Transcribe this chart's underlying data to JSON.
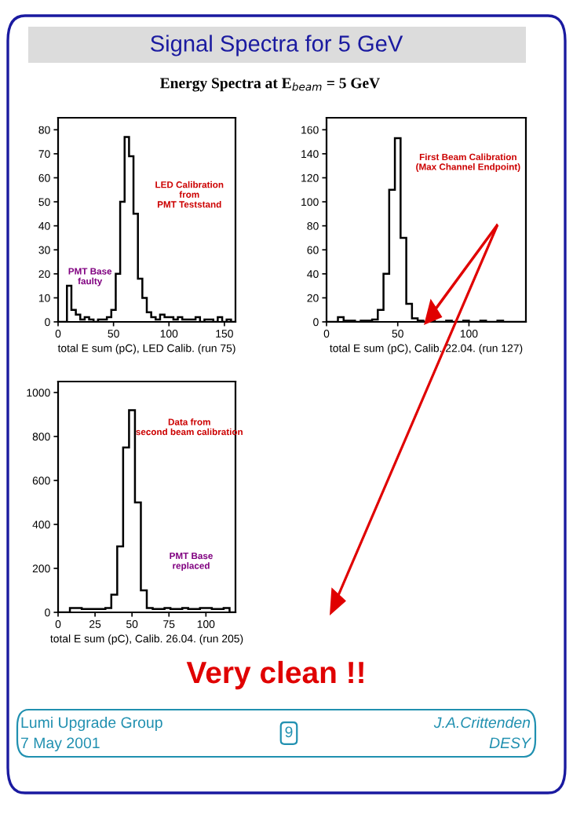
{
  "chart_data": [
    {
      "type": "histogram",
      "xlabel": "total E sum (pC), LED Calib. (run 75)",
      "bins": [
        0,
        4,
        8,
        12,
        16,
        20,
        24,
        28,
        32,
        36,
        40,
        44,
        48,
        52,
        56,
        60,
        64,
        68,
        72,
        76,
        80,
        84,
        88,
        92,
        96,
        100,
        104,
        108,
        112,
        116,
        120,
        124,
        128,
        132,
        136,
        140,
        144,
        148,
        152,
        156,
        160
      ],
      "values": [
        0,
        0,
        15,
        5,
        3,
        1,
        2,
        1,
        0,
        1,
        1,
        2,
        5,
        20,
        50,
        77,
        69,
        45,
        18,
        10,
        4,
        2,
        1,
        3,
        2,
        2,
        1,
        2,
        1,
        1,
        1,
        2,
        0,
        1,
        1,
        0,
        2,
        0,
        1,
        0
      ],
      "color": "#000000",
      "xlim": [
        0,
        160
      ],
      "ylim": [
        0,
        85
      ],
      "xticks": [
        0,
        50,
        100,
        150
      ],
      "yticks": [
        0,
        10,
        20,
        30,
        40,
        50,
        60,
        70,
        80
      ],
      "grid": false,
      "annotations": [
        "LED Calibration\nfrom\nPMT Teststand",
        "PMT Base\nfaulty"
      ]
    },
    {
      "type": "histogram",
      "xlabel": "total E sum (pC), Calib. 22.04. (run 127)",
      "bins": [
        0,
        4,
        8,
        12,
        16,
        20,
        24,
        28,
        32,
        36,
        40,
        44,
        48,
        52,
        56,
        60,
        64,
        68,
        72,
        76,
        80,
        84,
        88,
        92,
        96,
        100,
        104,
        108,
        112,
        116,
        120,
        124,
        128,
        132,
        136,
        140
      ],
      "values": [
        0,
        0,
        4,
        1,
        1,
        0,
        1,
        1,
        2,
        10,
        40,
        110,
        153,
        70,
        15,
        3,
        1,
        0,
        1,
        0,
        0,
        1,
        0,
        0,
        1,
        0,
        0,
        1,
        0,
        0,
        1,
        0,
        0,
        0,
        0
      ],
      "color": "#000000",
      "xlim": [
        0,
        140
      ],
      "ylim": [
        0,
        170
      ],
      "xticks": [
        0,
        50,
        100
      ],
      "yticks": [
        0,
        20,
        40,
        60,
        80,
        100,
        120,
        140,
        160
      ],
      "grid": false,
      "annotations": [
        "First Beam Calibration\n(Max Channel Endpoint)"
      ]
    },
    {
      "type": "histogram",
      "xlabel": "total E sum (pC), Calib. 26.04. (run 205)",
      "bins": [
        0,
        4,
        8,
        12,
        16,
        20,
        24,
        28,
        32,
        36,
        40,
        44,
        48,
        52,
        56,
        60,
        64,
        68,
        72,
        76,
        80,
        84,
        88,
        92,
        96,
        100,
        104,
        108,
        112,
        116,
        120
      ],
      "values": [
        0,
        0,
        20,
        20,
        15,
        15,
        15,
        15,
        20,
        80,
        300,
        750,
        920,
        500,
        100,
        20,
        15,
        15,
        20,
        15,
        15,
        20,
        15,
        15,
        20,
        20,
        15,
        15,
        20,
        0
      ],
      "color": "#000000",
      "xlim": [
        0,
        120
      ],
      "ylim": [
        0,
        1050
      ],
      "xticks": [
        0,
        25,
        50,
        75,
        100
      ],
      "yticks": [
        0,
        200,
        400,
        600,
        800,
        1000
      ],
      "grid": false,
      "annotations": [
        "Data from\nsecond beam calibration",
        "PMT Base\nreplaced"
      ]
    },
    {
      "type": "other",
      "title": "Signal Spectra for 5 GeV",
      "subtitle": "Energy Spectra at E$_{beam}$ = 5 GeV",
      "annotations": [
        "Very clean !!",
        "Lumi Upgrade Group",
        "7 May 2001",
        "9",
        "J.A.Crittenden",
        "DESY"
      ]
    }
  ]
}
